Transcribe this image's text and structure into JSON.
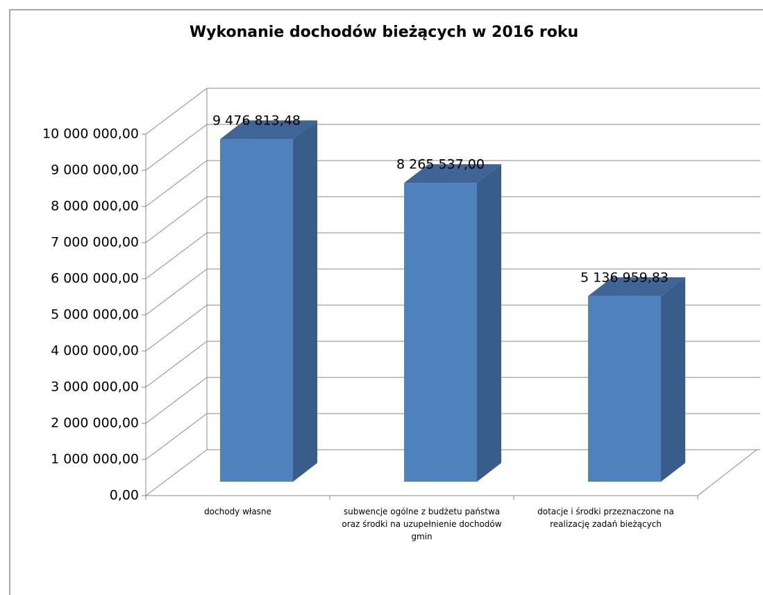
{
  "chart_data": {
    "type": "bar3d",
    "title": "Wykonanie dochodów bieżących w 2016 roku",
    "categories": [
      "dochody własne",
      "subwencje ogólne z budżetu państwa oraz środki na uzupełnienie dochodów gmin",
      "dotacje i środki przeznaczone na realizację zadań bieżących"
    ],
    "values": [
      9476813.48,
      8265537.0,
      5136959.83
    ],
    "value_labels": [
      "9 476 813,48",
      "8 265 537,00",
      "5 136 959,83"
    ],
    "color": "#4f81bd",
    "ylim": [
      0,
      10000000
    ],
    "yticks": [
      {
        "value": 0,
        "label": "0,00"
      },
      {
        "value": 1000000,
        "label": "1 000 000,00"
      },
      {
        "value": 2000000,
        "label": "2 000 000,00"
      },
      {
        "value": 3000000,
        "label": "3 000 000,00"
      },
      {
        "value": 4000000,
        "label": "4 000 000,00"
      },
      {
        "value": 5000000,
        "label": "5 000 000,00"
      },
      {
        "value": 6000000,
        "label": "6 000 000,00"
      },
      {
        "value": 7000000,
        "label": "7 000 000,00"
      },
      {
        "value": 8000000,
        "label": "8 000 000,00"
      },
      {
        "value": 9000000,
        "label": "9 000 000,00"
      },
      {
        "value": 10000000,
        "label": "10 000 000,00"
      }
    ],
    "grid": true
  }
}
